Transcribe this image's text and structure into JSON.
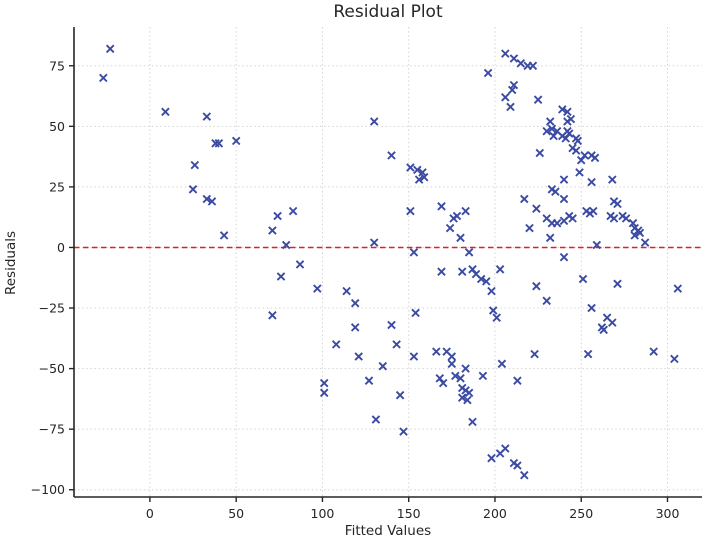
{
  "title": "Residual Plot",
  "chart_data": {
    "type": "scatter",
    "title": "Residual Plot",
    "xlabel": "Fitted Values",
    "ylabel": "Residuals",
    "x_ticks": [
      0,
      50,
      100,
      150,
      200,
      250,
      300
    ],
    "y_ticks": [
      75,
      50,
      25,
      0,
      -25,
      -50,
      -75,
      -100
    ],
    "xlim": [
      -44,
      320
    ],
    "ylim": [
      -103,
      91
    ],
    "grid": true,
    "grid_color": "#d4d4d4",
    "marker": "x",
    "marker_color": "#3b4ba3",
    "spine_color": "#262626",
    "zero_line": {
      "y": 0,
      "color": "#e02020",
      "style": "dashed"
    },
    "points": [
      [
        -23,
        82
      ],
      [
        -27,
        70
      ],
      [
        9,
        56
      ],
      [
        33,
        54
      ],
      [
        38,
        43
      ],
      [
        40,
        43
      ],
      [
        50,
        44
      ],
      [
        26,
        34
      ],
      [
        25,
        24
      ],
      [
        33,
        20
      ],
      [
        36,
        19
      ],
      [
        43,
        5
      ],
      [
        71,
        7
      ],
      [
        74,
        13
      ],
      [
        83,
        15
      ],
      [
        79,
        1
      ],
      [
        87,
        -7
      ],
      [
        76,
        -12
      ],
      [
        97,
        -17
      ],
      [
        71,
        -28
      ],
      [
        114,
        -18
      ],
      [
        119,
        -23
      ],
      [
        119,
        -33
      ],
      [
        108,
        -40
      ],
      [
        121,
        -45
      ],
      [
        101,
        -56
      ],
      [
        101,
        -60
      ],
      [
        127,
        -55
      ],
      [
        131,
        -71
      ],
      [
        130,
        52
      ],
      [
        140,
        38
      ],
      [
        151,
        33
      ],
      [
        155,
        32
      ],
      [
        158,
        31
      ],
      [
        156,
        28
      ],
      [
        159,
        29
      ],
      [
        151,
        15
      ],
      [
        153,
        -2
      ],
      [
        130,
        2
      ],
      [
        154,
        -27
      ],
      [
        140,
        -32
      ],
      [
        143,
        -40
      ],
      [
        153,
        -45
      ],
      [
        145,
        -61
      ],
      [
        147,
        -76
      ],
      [
        135,
        -49
      ],
      [
        169,
        17
      ],
      [
        176,
        12
      ],
      [
        178,
        13
      ],
      [
        183,
        15
      ],
      [
        174,
        8
      ],
      [
        180,
        4
      ],
      [
        185,
        -2
      ],
      [
        169,
        -10
      ],
      [
        181,
        -10
      ],
      [
        187,
        -9
      ],
      [
        189,
        -11
      ],
      [
        192,
        -13
      ],
      [
        195,
        -14
      ],
      [
        203,
        -9
      ],
      [
        198,
        -18
      ],
      [
        196,
        72
      ],
      [
        166,
        -43
      ],
      [
        172,
        -43
      ],
      [
        175,
        -45
      ],
      [
        175,
        -48
      ],
      [
        168,
        -54
      ],
      [
        170,
        -56
      ],
      [
        177,
        -53
      ],
      [
        180,
        -54
      ],
      [
        183,
        -50
      ],
      [
        181,
        -58
      ],
      [
        183,
        -59
      ],
      [
        185,
        -60
      ],
      [
        181,
        -62
      ],
      [
        184,
        -63
      ],
      [
        193,
        -53
      ],
      [
        187,
        -72
      ],
      [
        204,
        -48
      ],
      [
        213,
        -55
      ],
      [
        198,
        -87
      ],
      [
        203,
        -85
      ],
      [
        206,
        -83
      ],
      [
        211,
        -89
      ],
      [
        213,
        -90
      ],
      [
        217,
        -94
      ],
      [
        199,
        -26
      ],
      [
        201,
        -29
      ],
      [
        206,
        80
      ],
      [
        211,
        78
      ],
      [
        215,
        76
      ],
      [
        219,
        75
      ],
      [
        222,
        75
      ],
      [
        211,
        67
      ],
      [
        210,
        65
      ],
      [
        206,
        62
      ],
      [
        209,
        58
      ],
      [
        225,
        61
      ],
      [
        217,
        20
      ],
      [
        220,
        8
      ],
      [
        224,
        16
      ],
      [
        224,
        -16
      ],
      [
        230,
        -22
      ],
      [
        223,
        -44
      ],
      [
        239,
        57
      ],
      [
        242,
        56
      ],
      [
        232,
        52
      ],
      [
        242,
        52
      ],
      [
        244,
        53
      ],
      [
        230,
        48
      ],
      [
        233,
        49
      ],
      [
        236,
        48
      ],
      [
        242,
        48
      ],
      [
        243,
        47
      ],
      [
        234,
        46
      ],
      [
        239,
        46
      ],
      [
        241,
        45
      ],
      [
        247,
        45
      ],
      [
        248,
        44
      ],
      [
        245,
        41
      ],
      [
        247,
        40
      ],
      [
        226,
        39
      ],
      [
        233,
        24
      ],
      [
        235,
        23
      ],
      [
        240,
        20
      ],
      [
        240,
        28
      ],
      [
        249,
        31
      ],
      [
        250,
        36
      ],
      [
        252,
        38
      ],
      [
        256,
        38
      ],
      [
        258,
        37
      ],
      [
        240,
        11
      ],
      [
        243,
        13
      ],
      [
        245,
        12
      ],
      [
        230,
        12
      ],
      [
        233,
        10
      ],
      [
        236,
        10
      ],
      [
        232,
        4
      ],
      [
        240,
        -4
      ],
      [
        253,
        15
      ],
      [
        255,
        14
      ],
      [
        257,
        15
      ],
      [
        256,
        27
      ],
      [
        268,
        28
      ],
      [
        269,
        19
      ],
      [
        271,
        18
      ],
      [
        267,
        13
      ],
      [
        269,
        12
      ],
      [
        274,
        13
      ],
      [
        276,
        12
      ],
      [
        259,
        1
      ],
      [
        256,
        -25
      ],
      [
        251,
        -13
      ],
      [
        254,
        -44
      ],
      [
        262,
        -33
      ],
      [
        263,
        -34
      ],
      [
        265,
        -29
      ],
      [
        268,
        -31
      ],
      [
        271,
        -15
      ],
      [
        280,
        10
      ],
      [
        281,
        8
      ],
      [
        283,
        7
      ],
      [
        281,
        5
      ],
      [
        284,
        6
      ],
      [
        287,
        2
      ],
      [
        292,
        -43
      ],
      [
        304,
        -46
      ],
      [
        306,
        -17
      ]
    ]
  }
}
